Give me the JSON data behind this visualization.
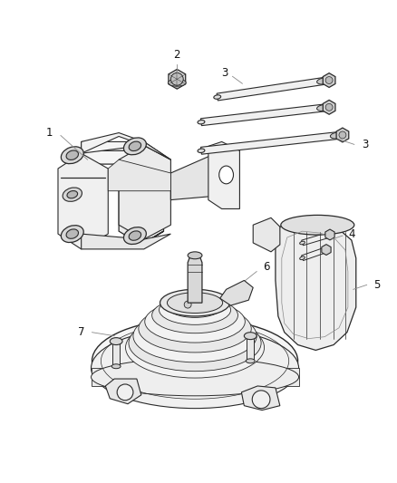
{
  "bg_color": "#ffffff",
  "lc": "#2a2a2a",
  "lc_light": "#888888",
  "lw": 0.9,
  "label_fontsize": 8.5,
  "label_color": "#111111",
  "fig_width": 4.38,
  "fig_height": 5.33,
  "dpi": 100
}
